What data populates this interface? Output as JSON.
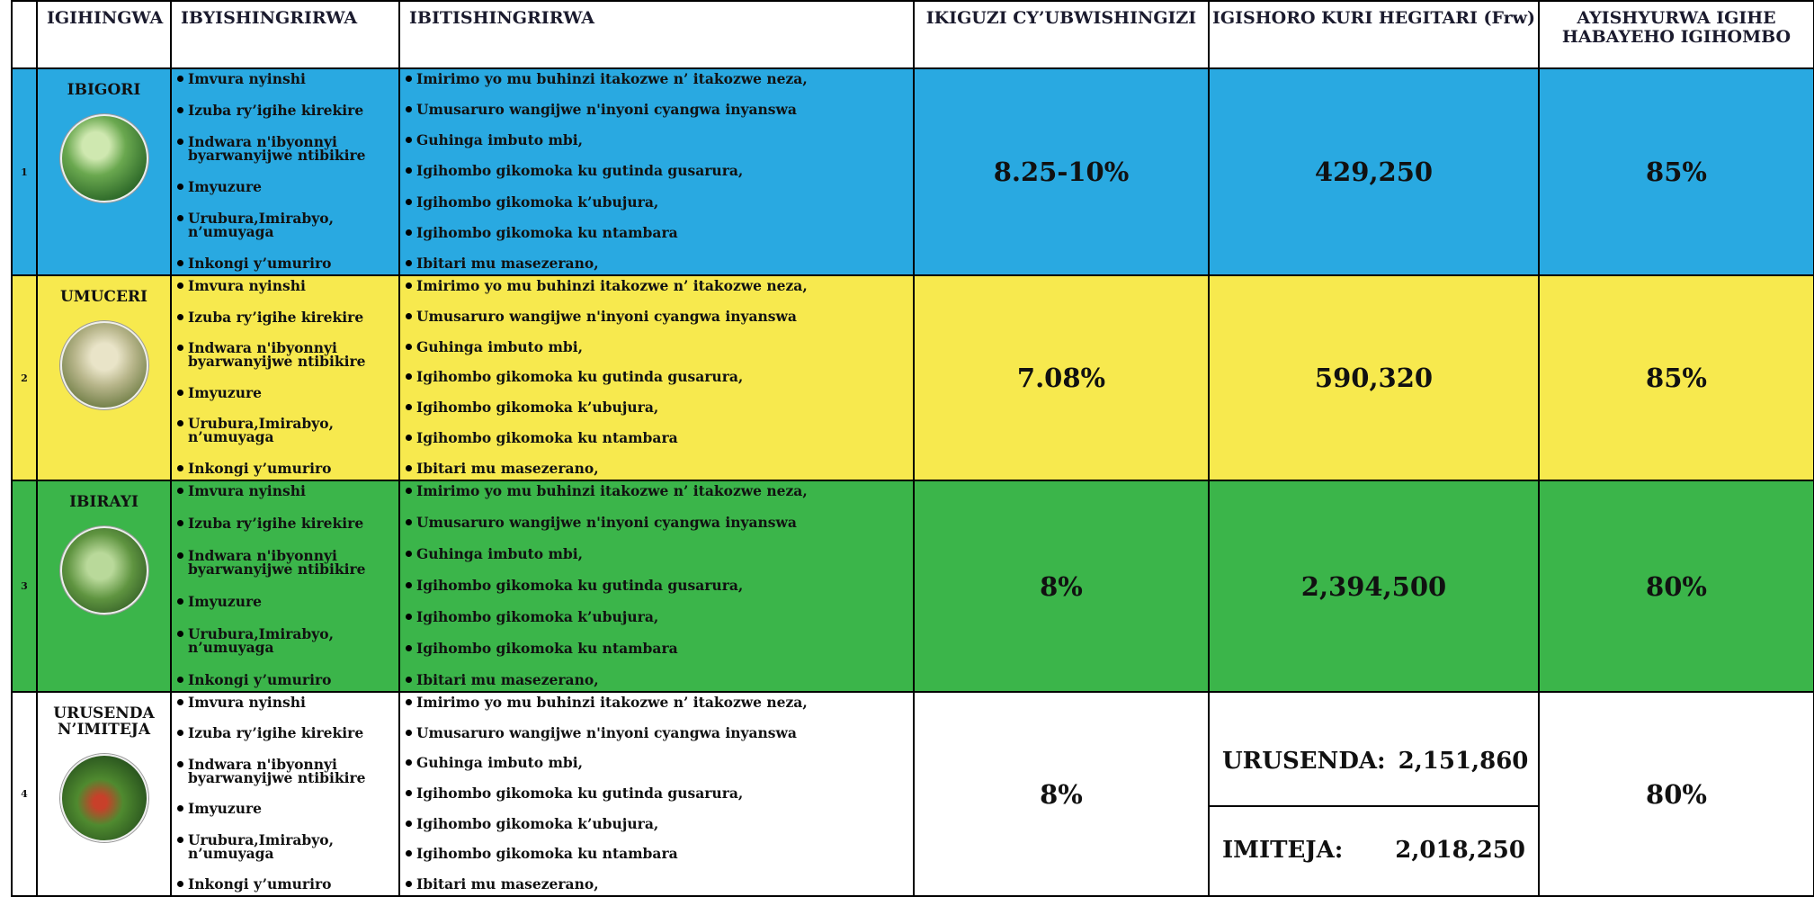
{
  "table": {
    "header": [
      "IGIHINGWA",
      "IBYISHINGRIRWA",
      "IBITISHINGRIRWA",
      "IKIGUZI CY’UBWISHINGIZI",
      "IGISHORO KURI HEGITARI (Frw)",
      "AYISHYURWA IGIHE HABAYEHO IGIHOMBO"
    ],
    "rows": [
      {
        "number": "1",
        "crop": "IBIGORI",
        "color": "#29a9e1",
        "risks": [
          "Imvura nyinshi",
          "Izuba  ry’igihe kirekire",
          "Indwara n'ibyonnyi byarwanyijwe ntibikire",
          "Imyuzure",
          "Urubura,Imirabyo, n’umuyaga",
          "Inkongi y’umuriro"
        ],
        "exclusions": [
          "Imirimo yo mu buhinzi itakozwe n’ itakozwe neza,",
          "Umusaruro wangijwe n'inyoni cyangwa inyanswa",
          "Guhinga imbuto mbi,",
          "Igihombo gikomoka ku gutinda gusarura,",
          "Igihombo gikomoka k’ubujura,",
          "Igihombo gikomoka ku ntambara",
          "Ibitari mu masezerano,"
        ],
        "premium": "8.25-10%",
        "investment": "429,250",
        "payout": "85%"
      },
      {
        "number": "2",
        "crop": "UMUCERI",
        "color": "#f7e94e",
        "risks": [
          "Imvura nyinshi",
          "Izuba  ry’igihe kirekire",
          "Indwara n'ibyonnyi byarwanyijwe ntibikire",
          "Imyuzure",
          "Urubura,Imirabyo, n’umuyaga",
          "Inkongi y’umuriro"
        ],
        "exclusions": [
          "Imirimo yo mu buhinzi itakozwe n’ itakozwe neza,",
          "Umusaruro wangijwe n'inyoni cyangwa inyanswa",
          "Guhinga imbuto mbi,",
          "Igihombo gikomoka ku gutinda gusarura,",
          "Igihombo gikomoka k’ubujura,",
          "Igihombo gikomoka ku ntambara",
          "Ibitari mu masezerano,"
        ],
        "premium": "7.08%",
        "investment": "590,320",
        "payout": "85%"
      },
      {
        "number": "3",
        "crop": "IBIRAYI",
        "color": "#3bb54a",
        "risks": [
          "Imvura nyinshi",
          "Izuba  ry’igihe kirekire",
          "Indwara n'ibyonnyi byarwanyijwe ntibikire",
          "Imyuzure",
          "Urubura,Imirabyo, n’umuyaga",
          "Inkongi y’umuriro"
        ],
        "exclusions": [
          "Imirimo yo mu buhinzi itakozwe n’ itakozwe neza,",
          "Umusaruro wangijwe n'inyoni cyangwa inyanswa",
          "Guhinga imbuto mbi,",
          "Igihombo gikomoka ku gutinda gusarura,",
          "Igihombo gikomoka k’ubujura,",
          "Igihombo gikomoka ku ntambara",
          "Ibitari mu masezerano,"
        ],
        "premium": "8%",
        "investment": "2,394,500",
        "payout": "80%"
      },
      {
        "number": "4",
        "crop": "URUSENDA N’IMITEJA",
        "color": "#ffffff",
        "risks": [
          "Imvura nyinshi",
          "Izuba  ry’igihe kirekire",
          "Indwara n'ibyonnyi byarwanyijwe ntibikire",
          "Imyuzure",
          "Urubura,Imirabyo, n’umuyaga",
          "Inkongi y’umuriro"
        ],
        "exclusions": [
          "Imirimo yo mu buhinzi itakozwe n’ itakozwe neza,",
          "Umusaruro wangijwe n'inyoni cyangwa inyanswa",
          "Guhinga imbuto mbi,",
          "Igihombo gikomoka ku gutinda gusarura,",
          "Igihombo gikomoka k’ubujura,",
          "Igihombo gikomoka ku ntambara",
          "Ibitari mu masezerano,"
        ],
        "premium": "8%",
        "investment": [
          {
            "label": "URUSENDA:",
            "value": "2,151,860"
          },
          {
            "label": "IMITEJA:",
            "value": "2,018,250"
          }
        ],
        "payout": "80%"
      }
    ]
  }
}
